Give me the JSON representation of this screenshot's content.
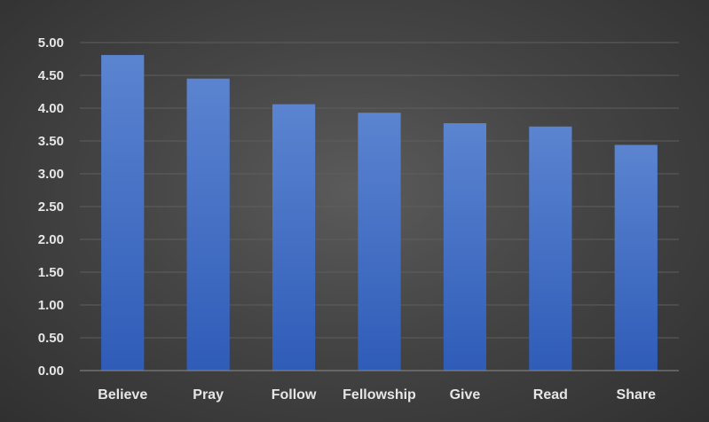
{
  "chart_data": {
    "type": "bar",
    "categories": [
      "Believe",
      "Pray",
      "Follow",
      "Fellowship",
      "Give",
      "Read",
      "Share"
    ],
    "values": [
      4.81,
      4.45,
      4.06,
      3.93,
      3.77,
      3.72,
      3.44
    ],
    "ylim": [
      0,
      5
    ],
    "yticks": [
      "0.00",
      "0.50",
      "1.00",
      "1.50",
      "2.00",
      "2.50",
      "3.00",
      "3.50",
      "4.00",
      "4.50",
      "5.00"
    ],
    "grid": true,
    "legend": "none",
    "colors": {
      "bar_top": "#5b84d0",
      "bar_bottom": "#2f5cb8",
      "grid": "#5e5e5e",
      "axis": "#8c8c8c",
      "text": "#e6e6e6"
    }
  }
}
